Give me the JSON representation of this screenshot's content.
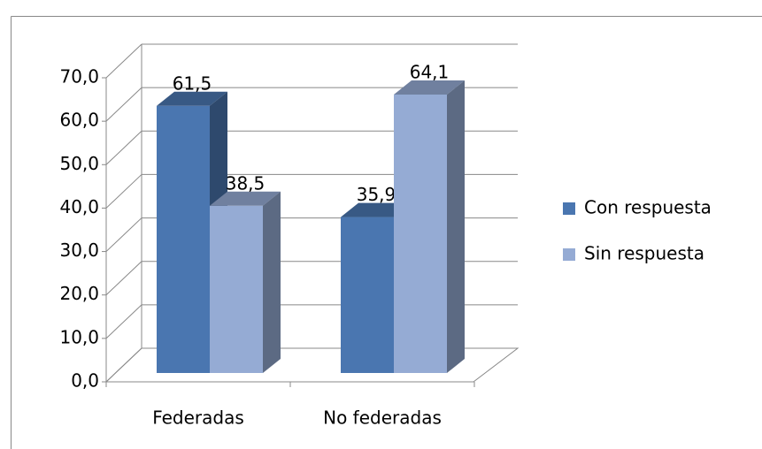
{
  "chart_data": {
    "type": "bar3d",
    "categories": [
      "Federadas",
      "No federadas"
    ],
    "series": [
      {
        "name": "Con respuesta",
        "color": "#4a76b0",
        "values": [
          61.5,
          35.9
        ],
        "value_labels": [
          "61,5",
          "35,9"
        ]
      },
      {
        "name": "Sin respuesta",
        "color": "#95abd4",
        "values": [
          38.5,
          64.1
        ],
        "value_labels": [
          "38,5",
          "64,1"
        ]
      }
    ],
    "ylim": [
      0,
      70
    ],
    "yticks": [
      {
        "value": 0,
        "label": "0,0"
      },
      {
        "value": 10,
        "label": "10,0"
      },
      {
        "value": 20,
        "label": "20,0"
      },
      {
        "value": 30,
        "label": "30,0"
      },
      {
        "value": 40,
        "label": "40,0"
      },
      {
        "value": 50,
        "label": "50,0"
      },
      {
        "value": 60,
        "label": "60,0"
      },
      {
        "value": 70,
        "label": "70,0"
      }
    ],
    "grid": true,
    "legend": "right"
  }
}
